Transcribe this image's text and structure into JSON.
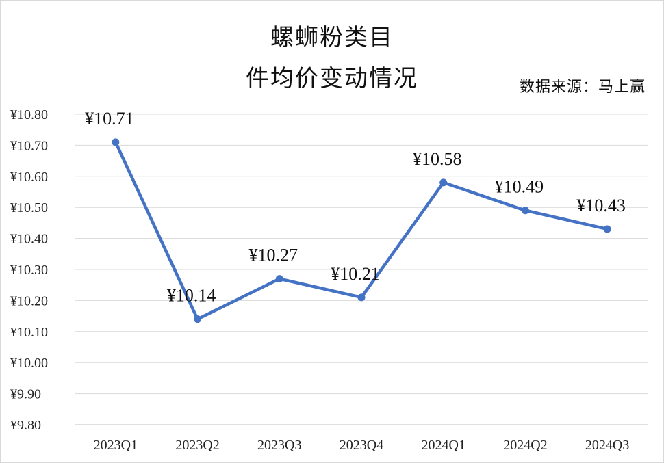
{
  "chart_data": {
    "type": "line",
    "title": [
      "螺蛳粉类目",
      "件均价变动情况"
    ],
    "source": "数据来源：马上赢",
    "categories": [
      "2023Q1",
      "2023Q2",
      "2023Q3",
      "2023Q4",
      "2024Q1",
      "2024Q2",
      "2024Q3"
    ],
    "series": [
      {
        "values": [
          10.71,
          10.14,
          10.27,
          10.21,
          10.58,
          10.49,
          10.43
        ],
        "data_labels": [
          "¥10.71",
          "¥10.14",
          "¥10.27",
          "¥10.21",
          "¥10.58",
          "¥10.49",
          "¥10.43"
        ],
        "color": "#4472c4"
      }
    ],
    "y_ticks": [
      9.8,
      9.9,
      10.0,
      10.1,
      10.2,
      10.3,
      10.4,
      10.5,
      10.6,
      10.7,
      10.8
    ],
    "y_tick_labels": [
      "¥9.80",
      "¥9.90",
      "¥10.00",
      "¥10.10",
      "¥10.20",
      "¥10.30",
      "¥10.40",
      "¥10.50",
      "¥10.60",
      "¥10.70",
      "¥10.80"
    ],
    "ylim": [
      9.8,
      10.8
    ],
    "grid": true,
    "legend": "none",
    "gridline_color": "#d9d9d9",
    "axis_color": "#bfbfbf"
  }
}
